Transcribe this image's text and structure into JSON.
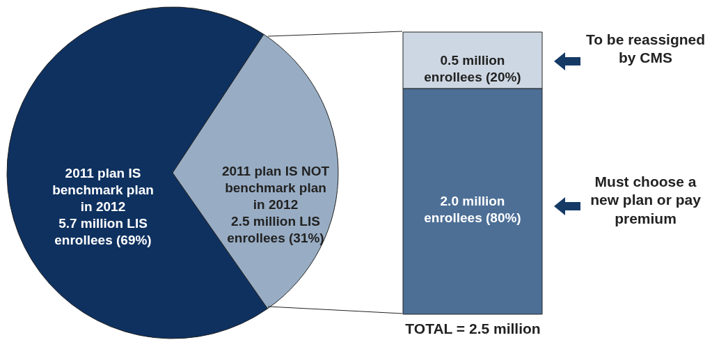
{
  "chart_data": [
    {
      "type": "pie",
      "categories": [
        "2011 plan IS benchmark plan in 2012",
        "2011 plan IS NOT benchmark plan in 2012"
      ],
      "values": [
        69,
        31
      ],
      "colors": [
        "#0e3160",
        "#98adc4"
      ],
      "value_labels": [
        "5.7 million LIS enrollees (69%)",
        "2.5 million LIS enrollees (31%)"
      ]
    },
    {
      "type": "bar",
      "stacked": true,
      "categories": [
        null
      ],
      "xlabel": "TOTAL = 2.5 million",
      "series": [
        {
          "color": "#4d6f96",
          "values": [
            80
          ],
          "value_labels": [
            "2.0 million enrollees (80%)"
          ]
        },
        {
          "color": "#cdd7e3",
          "values": [
            20
          ],
          "value_labels": [
            "0.5 million enrollees (20%)"
          ]
        }
      ],
      "annotations": [
        "To be reassigned by CMS",
        "Must choose a new plan or pay premium"
      ]
    }
  ]
}
